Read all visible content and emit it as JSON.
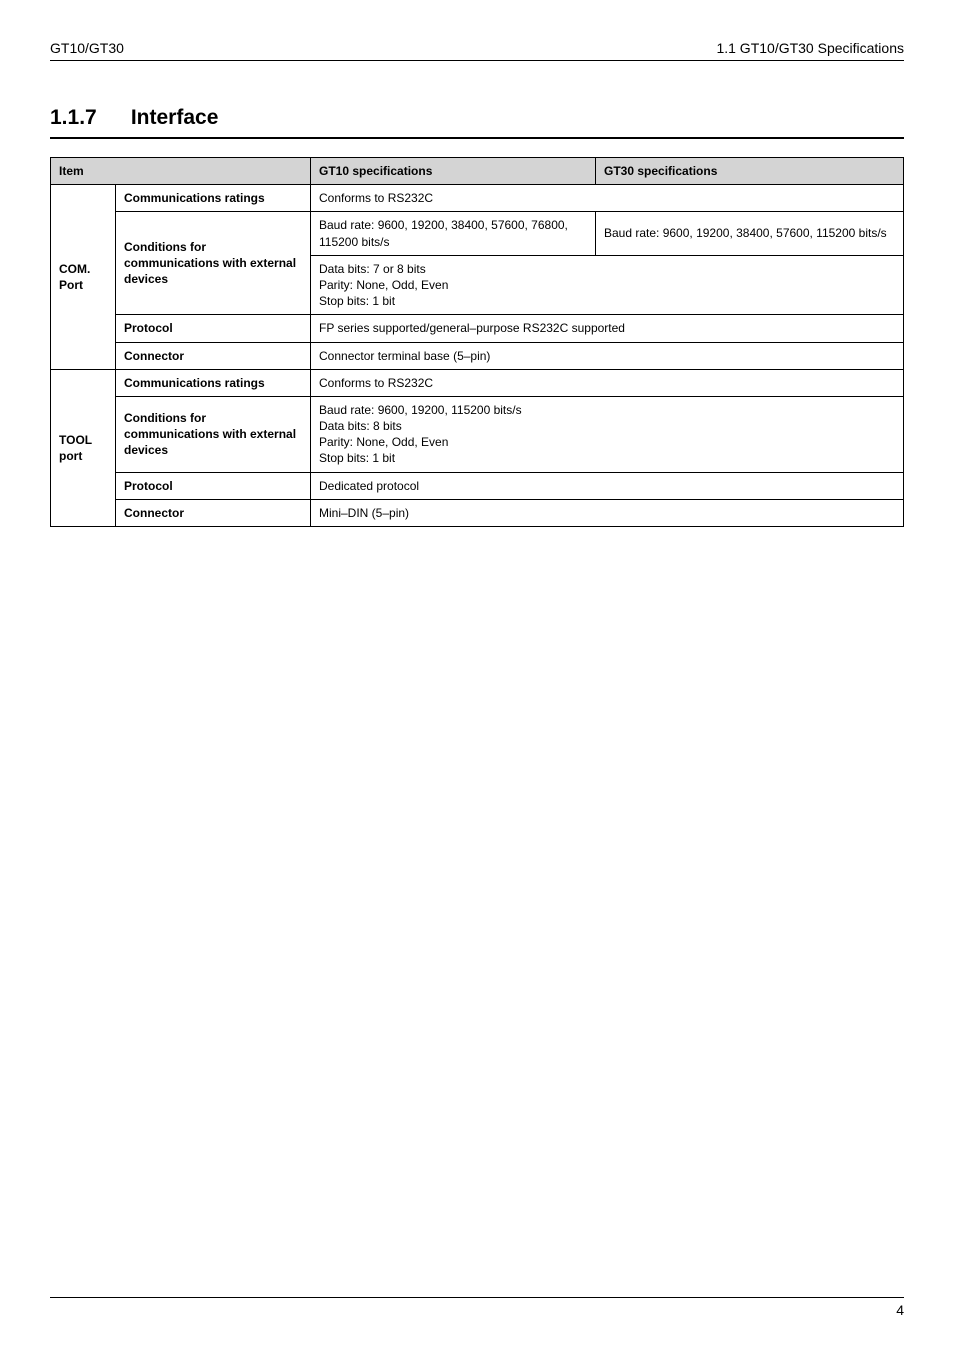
{
  "header": {
    "left": "GT10/GT30",
    "right": "1.1   GT10/GT30 Specifications"
  },
  "section": {
    "number": "1.1.7",
    "title": "Interface"
  },
  "table": {
    "head": {
      "item": "Item",
      "gt10": "GT10 specifications",
      "gt30": "GT30 specifications"
    },
    "com": {
      "group": "COM. Port",
      "comm_ratings_label": "Communications ratings",
      "comm_ratings_value": "Conforms to RS232C",
      "cond_label": "Conditions for communications with external devices",
      "cond_gt10": "Baud rate: 9600, 19200, 38400, 57600, 76800, 115200 bits/s",
      "cond_gt30": "Baud rate: 9600, 19200, 38400, 57600, 115200 bits/s",
      "cond_common": "Data bits: 7 or 8 bits\nParity: None, Odd, Even\nStop bits: 1 bit",
      "protocol_label": "Protocol",
      "protocol_value": "FP series supported/general–purpose RS232C supported",
      "connector_label": "Connector",
      "connector_value": "Connector terminal base (5–pin)"
    },
    "tool": {
      "group": "TOOL port",
      "comm_ratings_label": "Communications ratings",
      "comm_ratings_value": "Conforms to RS232C",
      "cond_label": "Conditions for communications with external devices",
      "cond_value": "Baud rate: 9600, 19200, 115200 bits/s\nData bits: 8 bits\nParity: None, Odd, Even\nStop bits: 1 bit",
      "protocol_label": "Protocol",
      "protocol_value": "Dedicated protocol",
      "connector_label": "Connector",
      "connector_value": "Mini–DIN (5–pin)"
    }
  },
  "footer": {
    "page": "4"
  }
}
